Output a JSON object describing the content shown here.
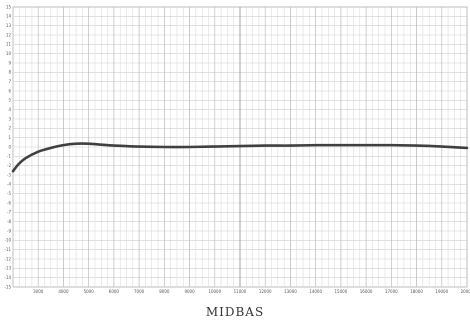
{
  "chart_data": {
    "type": "line",
    "title": "MIDBAS",
    "xlabel": "",
    "ylabel": "",
    "grid": true,
    "x_ticks": [
      "3000",
      "4000",
      "5000",
      "6000",
      "7000",
      "8000",
      "9000",
      "10000",
      "11000",
      "12000",
      "13000",
      "14000",
      "15000",
      "16000",
      "17000",
      "18000",
      "19000",
      "20000"
    ],
    "y_ticks": [
      "-15",
      "-14",
      "-13",
      "-12",
      "-11",
      "-10",
      "-9",
      "-8",
      "-7",
      "-6",
      "-5",
      "-4",
      "-3",
      "-2",
      "-1",
      "0",
      "1",
      "2",
      "3",
      "4",
      "5",
      "6",
      "7",
      "8",
      "9",
      "10",
      "11",
      "12",
      "13",
      "14",
      "15"
    ],
    "xlim": [
      2000,
      20000
    ],
    "ylim": [
      -15,
      15
    ],
    "series": [
      {
        "color": "#404040",
        "x": [
          2000,
          2200,
          2500,
          3000,
          3500,
          4000,
          4500,
          5000,
          5500,
          6000,
          7000,
          8000,
          9000,
          10000,
          11000,
          12000,
          13000,
          14000,
          15000,
          16000,
          17000,
          18000,
          19000,
          20000
        ],
        "y": [
          -2.6,
          -1.9,
          -1.2,
          -0.5,
          -0.1,
          0.2,
          0.35,
          0.35,
          0.25,
          0.15,
          0.05,
          0.0,
          0.0,
          0.05,
          0.1,
          0.15,
          0.15,
          0.2,
          0.2,
          0.2,
          0.2,
          0.15,
          0.05,
          -0.1
        ]
      }
    ]
  }
}
